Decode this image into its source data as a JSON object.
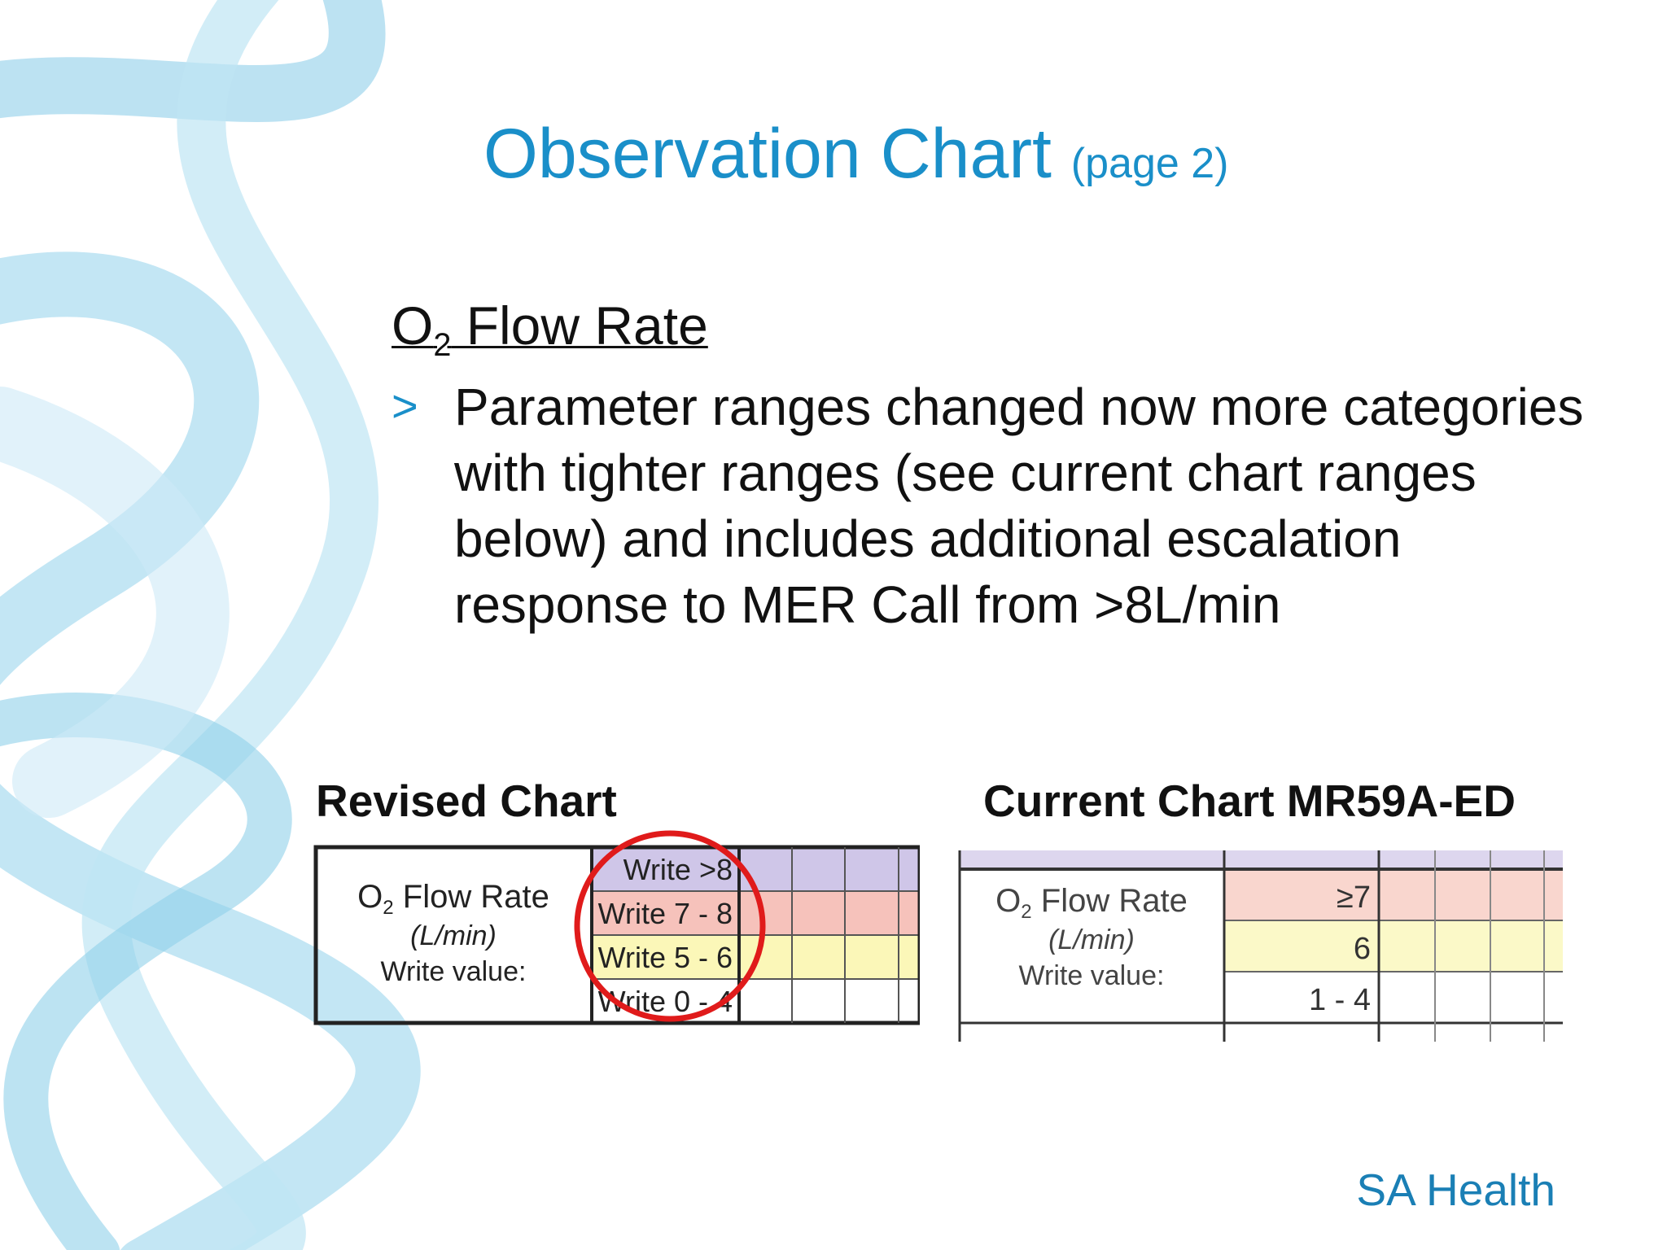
{
  "header": {
    "title": "Observation Chart",
    "subtitle": "(page 2)"
  },
  "section": {
    "heading": {
      "prefix": "O",
      "subscript": "2",
      "rest": " Flow Rate"
    },
    "bullet_marker": ">",
    "bullet": "Parameter ranges changed now more categories with tighter ranges (see current chart ranges below) and includes additional escalation response to MER Call from >8L/min"
  },
  "revised": {
    "caption": "Revised Chart",
    "label": {
      "prefix": "O",
      "subscript": "2",
      "rest": " Flow Rate",
      "unit": "(L/min)",
      "instruction": "Write value:"
    },
    "rows": [
      {
        "text": "Write  >8",
        "color": "#cfc6e8"
      },
      {
        "text": "Write 7 - 8",
        "color": "#f6c2bb"
      },
      {
        "text": "Write 5 - 6",
        "color": "#fbf7b8"
      },
      {
        "text": "Write 0 - 4",
        "color": "#ffffff"
      }
    ]
  },
  "current": {
    "caption": "Current Chart MR59A-ED",
    "label": {
      "prefix": "O",
      "subscript": "2",
      "rest": " Flow Rate",
      "unit": "(L/min)",
      "instruction": "Write value:"
    },
    "rows": [
      {
        "text": "≥7",
        "color": "#f9d6ce"
      },
      {
        "text": "6",
        "color": "#fbf9c8"
      },
      {
        "text": "1 - 4",
        "color": "#ffffff"
      }
    ]
  },
  "footer": {
    "brand": "SA Health"
  }
}
